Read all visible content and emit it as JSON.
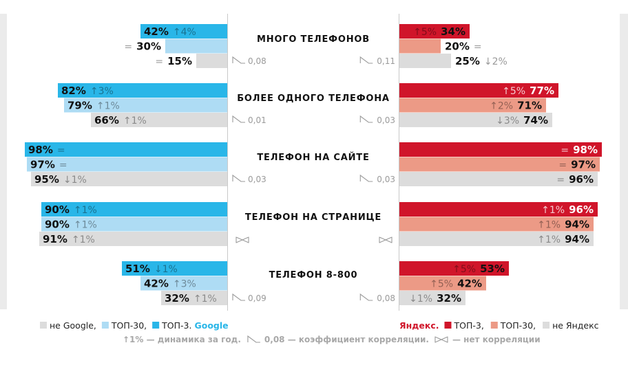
{
  "chart_data": {
    "type": "bar",
    "layout": "butterfly",
    "categories": [
      "МНОГО ТЕЛЕФОНОВ",
      "БОЛЕЕ ОДНОГО ТЕЛЕФОНА",
      "ТЕЛЕФОН НА САЙТЕ",
      "ТЕЛЕФОН НА СТРАНИЦЕ",
      "ТЕЛЕФОН 8-800"
    ],
    "xlim": [
      0,
      100
    ],
    "google": {
      "brand": "Google",
      "series": [
        {
          "name": "ТОП-3.",
          "color": "#29b6e8",
          "values": [
            42,
            82,
            98,
            90,
            51
          ],
          "labels": [
            "42%",
            "82%",
            "98%",
            "90%",
            "51%"
          ],
          "dynamics": [
            "↑4%",
            "↑3%",
            "=",
            "↑1%",
            "↓1%"
          ]
        },
        {
          "name": "ТОП-30,",
          "color": "#aedcf4",
          "values": [
            30,
            79,
            97,
            90,
            42
          ],
          "labels": [
            "30%",
            "79%",
            "97%",
            "90%",
            "42%"
          ],
          "dynamics": [
            "=",
            "↑1%",
            "=",
            "↑1%",
            "↑3%"
          ]
        },
        {
          "name": "не Google,",
          "color": "#dcdcdc",
          "values": [
            15,
            66,
            95,
            91,
            32
          ],
          "labels": [
            "15%",
            "66%",
            "95%",
            "91%",
            "32%"
          ],
          "dynamics": [
            "=",
            "↑1%",
            "↓1%",
            "↑1%",
            "↑1%"
          ]
        }
      ],
      "correlation": [
        "0,08",
        "0,01",
        "0,03",
        "",
        "0,09"
      ]
    },
    "yandex": {
      "brand": "Яндекс.",
      "series": [
        {
          "name": "ТОП-3,",
          "color": "#d0152a",
          "values": [
            34,
            77,
            98,
            96,
            53
          ],
          "labels": [
            "34%",
            "77%",
            "98%",
            "96%",
            "53%"
          ],
          "dynamics": [
            "↑5%",
            "↑5%",
            "=",
            "↑1%",
            "↑5%"
          ]
        },
        {
          "name": "ТОП-30,",
          "color": "#ec9a86",
          "values": [
            20,
            71,
            97,
            94,
            42
          ],
          "labels": [
            "20%",
            "71%",
            "97%",
            "94%",
            "42%"
          ],
          "dynamics": [
            "=",
            "↑2%",
            "=",
            "↑1%",
            "↑5%"
          ]
        },
        {
          "name": "не Яндекс",
          "color": "#dcdcdc",
          "values": [
            25,
            74,
            96,
            94,
            32
          ],
          "labels": [
            "25%",
            "74%",
            "96%",
            "94%",
            "32%"
          ],
          "dynamics": [
            "↓2%",
            "↓3%",
            "=",
            "↑1%",
            "↓1%"
          ]
        }
      ],
      "correlation": [
        "0,11",
        "0,03",
        "0,03",
        "",
        "0,08"
      ]
    },
    "notes": {
      "dynamics": "↑1% — динамика за год.",
      "correlation": "0,08 — коэффициент корреляции.",
      "no_correlation": "— нет корреляции"
    }
  }
}
